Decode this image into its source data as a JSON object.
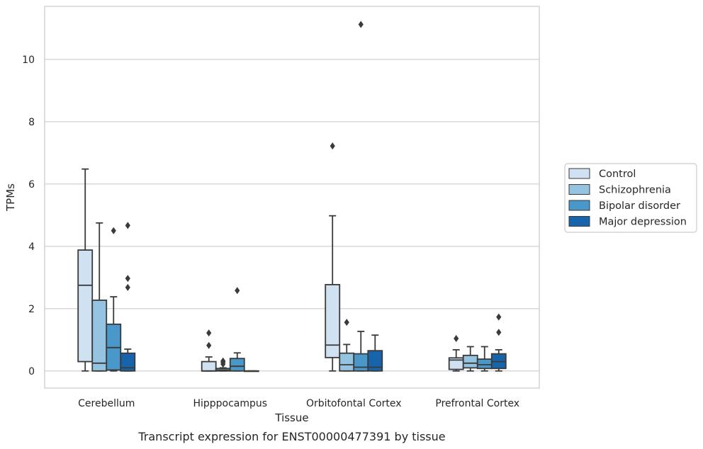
{
  "chart_data": {
    "type": "box",
    "title": "Transcript expression for ENST00000477391 by tissue",
    "xlabel": "Tissue",
    "ylabel": "TPMs",
    "ylim": [
      -0.55,
      11.7
    ],
    "yticks": [
      0,
      2,
      4,
      6,
      8,
      10
    ],
    "grid": true,
    "legend_position": "right",
    "categories": [
      "Cerebellum",
      "Hipppocampus",
      "Orbitofontal Cortex",
      "Prefrontal Cortex"
    ],
    "series": [
      {
        "name": "Control",
        "color": "#d0e1f2",
        "boxes": [
          {
            "q1": 0.3,
            "median": 2.75,
            "q3": 3.88,
            "whisker_low": 0.0,
            "whisker_high": 6.48,
            "outliers": []
          },
          {
            "q1": 0.0,
            "median": 0.0,
            "q3": 0.3,
            "whisker_low": 0.0,
            "whisker_high": 0.45,
            "outliers": [
              0.82,
              1.22
            ]
          },
          {
            "q1": 0.43,
            "median": 0.83,
            "q3": 2.77,
            "whisker_low": 0.0,
            "whisker_high": 4.98,
            "outliers": [
              7.22
            ]
          },
          {
            "q1": 0.05,
            "median": 0.35,
            "q3": 0.42,
            "whisker_low": 0.0,
            "whisker_high": 0.68,
            "outliers": [
              1.04
            ]
          }
        ]
      },
      {
        "name": "Schizophrenia",
        "color": "#94c4df",
        "boxes": [
          {
            "q1": 0.0,
            "median": 0.25,
            "q3": 2.27,
            "whisker_low": 0.0,
            "whisker_high": 4.75,
            "outliers": []
          },
          {
            "q1": 0.0,
            "median": 0.03,
            "q3": 0.08,
            "whisker_low": 0.0,
            "whisker_high": 0.1,
            "outliers": [
              0.22,
              0.28,
              0.32
            ]
          },
          {
            "q1": 0.0,
            "median": 0.2,
            "q3": 0.57,
            "whisker_low": 0.0,
            "whisker_high": 0.85,
            "outliers": [
              1.56
            ]
          },
          {
            "q1": 0.1,
            "median": 0.25,
            "q3": 0.5,
            "whisker_low": 0.0,
            "whisker_high": 0.78,
            "outliers": []
          }
        ]
      },
      {
        "name": "Bipolar disorder",
        "color": "#4a98c9",
        "boxes": [
          {
            "q1": 0.03,
            "median": 0.75,
            "q3": 1.5,
            "whisker_low": 0.0,
            "whisker_high": 2.38,
            "outliers": [
              4.5
            ]
          },
          {
            "q1": 0.0,
            "median": 0.15,
            "q3": 0.4,
            "whisker_low": 0.0,
            "whisker_high": 0.58,
            "outliers": [
              2.58
            ]
          },
          {
            "q1": 0.0,
            "median": 0.12,
            "q3": 0.55,
            "whisker_low": 0.0,
            "whisker_high": 1.27,
            "outliers": [
              11.12
            ]
          },
          {
            "q1": 0.08,
            "median": 0.2,
            "q3": 0.38,
            "whisker_low": 0.0,
            "whisker_high": 0.78,
            "outliers": []
          }
        ]
      },
      {
        "name": "Major depression",
        "color": "#1764ab",
        "boxes": [
          {
            "q1": 0.0,
            "median": 0.1,
            "q3": 0.57,
            "whisker_low": 0.0,
            "whisker_high": 0.7,
            "outliers": [
              2.68,
              2.97,
              4.67
            ]
          },
          {
            "q1": 0.0,
            "median": 0.0,
            "q3": 0.0,
            "whisker_low": 0.0,
            "whisker_high": 0.0,
            "outliers": []
          },
          {
            "q1": 0.0,
            "median": 0.12,
            "q3": 0.65,
            "whisker_low": 0.0,
            "whisker_high": 1.15,
            "outliers": []
          },
          {
            "q1": 0.08,
            "median": 0.3,
            "q3": 0.55,
            "whisker_low": 0.0,
            "whisker_high": 0.68,
            "outliers": [
              1.24,
              1.73
            ]
          }
        ]
      }
    ]
  }
}
